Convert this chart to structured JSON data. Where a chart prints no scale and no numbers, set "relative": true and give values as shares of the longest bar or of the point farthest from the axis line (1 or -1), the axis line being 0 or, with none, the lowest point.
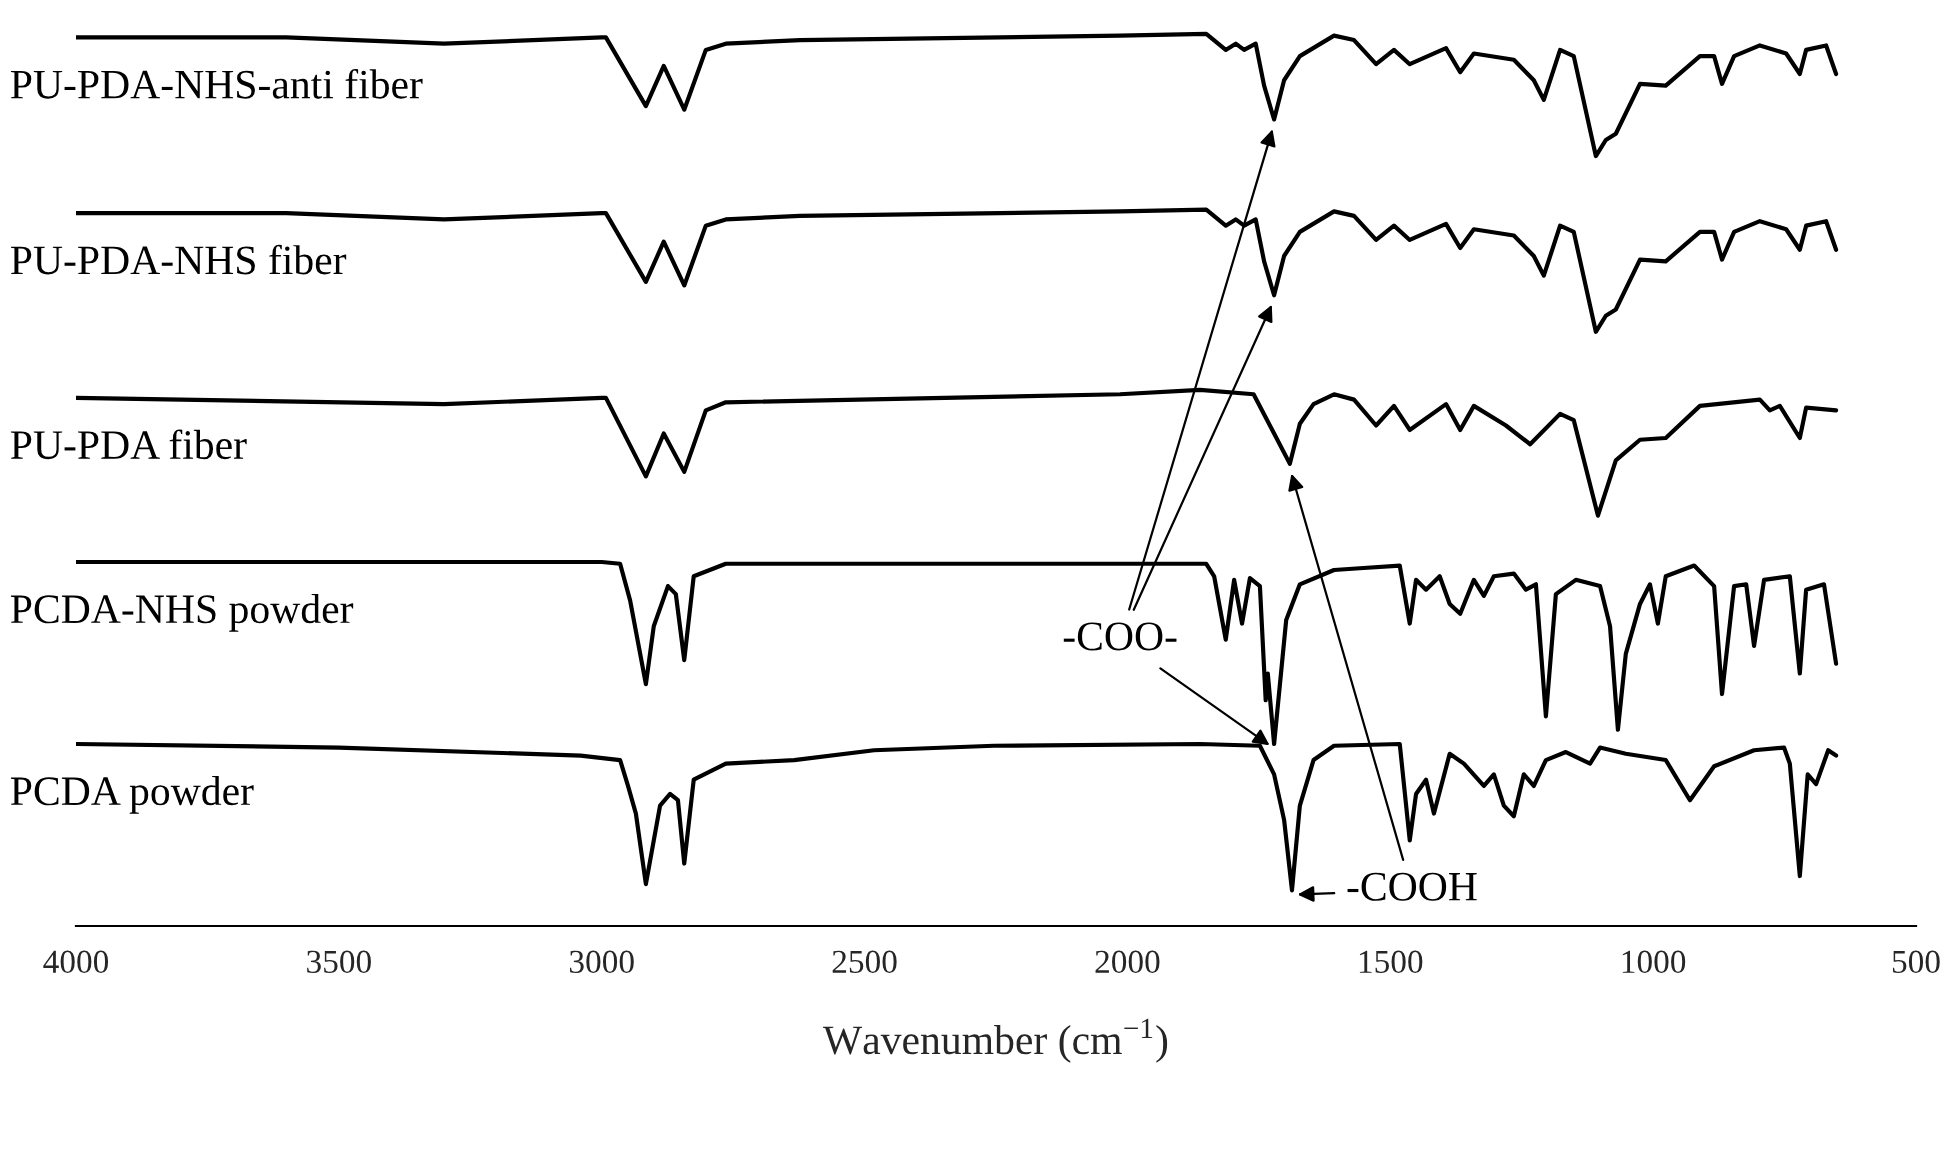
{
  "chart_data": {
    "type": "line",
    "relative": true,
    "xlabel": "Wavenumber (cm$^{−1}$)",
    "xlim": [
      4000,
      500
    ],
    "xticks": [
      4000,
      3500,
      3000,
      2500,
      2000,
      1500,
      1000,
      500
    ],
    "grid": false,
    "legend": false,
    "tick_labels": "x",
    "series": [
      {
        "name": "PU-PDA-NHS-anti fiber",
        "color": "#000000",
        "x": [
          4000,
          3600,
          3300,
          3000,
          2992,
          2916,
          2882,
          2843,
          2802,
          2764,
          2623,
          2014,
          1850,
          1813,
          1794,
          1778,
          1756,
          1740,
          1721,
          1702,
          1672,
          1607,
          1569,
          1527,
          1493,
          1463,
          1394,
          1367,
          1341,
          1265,
          1227,
          1208,
          1177,
          1151,
          1109,
          1090,
          1071,
          1025,
          976,
          911,
          884,
          869,
          846,
          797,
          747,
          721,
          709,
          671,
          652
        ],
        "values": [
          0.996,
          0.996,
          0.989,
          0.996,
          0.996,
          0.919,
          0.964,
          0.915,
          0.982,
          0.989,
          0.993,
          0.998,
          1.0,
          0.982,
          0.989,
          0.982,
          0.989,
          0.942,
          0.904,
          0.948,
          0.975,
          0.998,
          0.993,
          0.966,
          0.982,
          0.966,
          0.984,
          0.957,
          0.978,
          0.971,
          0.948,
          0.926,
          0.982,
          0.975,
          0.863,
          0.881,
          0.888,
          0.944,
          0.942,
          0.975,
          0.975,
          0.944,
          0.975,
          0.987,
          0.978,
          0.955,
          0.982,
          0.987,
          0.955
        ]
      },
      {
        "name": "PU-PDA-NHS fiber",
        "color": "#000000",
        "x": [
          4000,
          3600,
          3300,
          3000,
          2992,
          2916,
          2882,
          2843,
          2802,
          2764,
          2623,
          2014,
          1850,
          1813,
          1794,
          1778,
          1756,
          1740,
          1721,
          1702,
          1672,
          1607,
          1569,
          1527,
          1493,
          1463,
          1394,
          1367,
          1341,
          1265,
          1227,
          1208,
          1177,
          1151,
          1109,
          1090,
          1071,
          1025,
          976,
          911,
          884,
          869,
          846,
          797,
          747,
          721,
          709,
          671,
          652
        ],
        "values": [
          0.799,
          0.799,
          0.792,
          0.799,
          0.799,
          0.722,
          0.767,
          0.718,
          0.785,
          0.792,
          0.796,
          0.801,
          0.803,
          0.785,
          0.792,
          0.785,
          0.792,
          0.745,
          0.707,
          0.751,
          0.778,
          0.801,
          0.796,
          0.769,
          0.785,
          0.769,
          0.787,
          0.76,
          0.781,
          0.774,
          0.751,
          0.729,
          0.785,
          0.778,
          0.666,
          0.684,
          0.691,
          0.747,
          0.745,
          0.778,
          0.778,
          0.747,
          0.778,
          0.79,
          0.781,
          0.758,
          0.785,
          0.79,
          0.758
        ]
      },
      {
        "name": "PU-PDA fiber",
        "color": "#000000",
        "x": [
          4000,
          3300,
          3000,
          2992,
          2916,
          2882,
          2843,
          2802,
          2764,
          2014,
          1862,
          1760,
          1721,
          1691,
          1672,
          1646,
          1607,
          1569,
          1527,
          1493,
          1463,
          1394,
          1367,
          1341,
          1280,
          1234,
          1177,
          1151,
          1105,
          1071,
          1025,
          976,
          911,
          797,
          778,
          759,
          721,
          709,
          652
        ],
        "values": [
          0.592,
          0.585,
          0.592,
          0.592,
          0.504,
          0.552,
          0.509,
          0.578,
          0.587,
          0.596,
          0.601,
          0.596,
          0.552,
          0.518,
          0.563,
          0.585,
          0.596,
          0.59,
          0.561,
          0.583,
          0.556,
          0.585,
          0.556,
          0.583,
          0.561,
          0.54,
          0.574,
          0.567,
          0.46,
          0.522,
          0.545,
          0.547,
          0.583,
          0.59,
          0.578,
          0.583,
          0.547,
          0.581,
          0.578
        ]
      },
      {
        "name": "PCDA-NHS powder",
        "color": "#000000",
        "x": [
          4000,
          3000,
          2965,
          2946,
          2916,
          2901,
          2874,
          2859,
          2843,
          2825,
          2764,
          1850,
          1835,
          1813,
          1797,
          1782,
          1767,
          1748,
          1737,
          1733,
          1721,
          1698,
          1672,
          1607,
          1558,
          1482,
          1463,
          1451,
          1432,
          1406,
          1387,
          1367,
          1341,
          1322,
          1303,
          1265,
          1242,
          1223,
          1204,
          1185,
          1147,
          1101,
          1082,
          1067,
          1052,
          1025,
          1006,
          991,
          976,
          922,
          884,
          869,
          846,
          823,
          808,
          789,
          740,
          721,
          709,
          675,
          652
        ],
        "values": [
          0.408,
          0.408,
          0.406,
          0.365,
          0.271,
          0.336,
          0.381,
          0.372,
          0.298,
          0.392,
          0.406,
          0.406,
          0.392,
          0.321,
          0.388,
          0.339,
          0.39,
          0.381,
          0.253,
          0.283,
          0.204,
          0.343,
          0.383,
          0.399,
          0.401,
          0.404,
          0.339,
          0.388,
          0.377,
          0.392,
          0.361,
          0.35,
          0.388,
          0.37,
          0.392,
          0.395,
          0.377,
          0.383,
          0.235,
          0.372,
          0.388,
          0.381,
          0.336,
          0.22,
          0.305,
          0.361,
          0.383,
          0.339,
          0.392,
          0.404,
          0.381,
          0.26,
          0.381,
          0.383,
          0.314,
          0.388,
          0.392,
          0.283,
          0.377,
          0.383,
          0.294
        ]
      },
      {
        "name": "PCDA powder",
        "color": "#000000",
        "x": [
          4000,
          3500,
          3040,
          2965,
          2950,
          2935,
          2916,
          2889,
          2870,
          2855,
          2843,
          2825,
          2764,
          2634,
          2482,
          2254,
          1862,
          1748,
          1721,
          1702,
          1687,
          1672,
          1646,
          1607,
          1482,
          1463,
          1451,
          1432,
          1417,
          1387,
          1360,
          1322,
          1303,
          1284,
          1265,
          1246,
          1227,
          1204,
          1166,
          1120,
          1101,
          1052,
          976,
          930,
          884,
          808,
          751,
          740,
          721,
          706,
          690,
          667,
          652
        ],
        "values": [
          0.204,
          0.2,
          0.191,
          0.186,
          0.157,
          0.126,
          0.047,
          0.135,
          0.148,
          0.141,
          0.07,
          0.164,
          0.182,
          0.186,
          0.197,
          0.202,
          0.204,
          0.202,
          0.17,
          0.119,
          0.04,
          0.135,
          0.186,
          0.202,
          0.204,
          0.096,
          0.148,
          0.164,
          0.126,
          0.193,
          0.182,
          0.157,
          0.17,
          0.135,
          0.123,
          0.17,
          0.157,
          0.186,
          0.195,
          0.182,
          0.2,
          0.193,
          0.186,
          0.141,
          0.179,
          0.197,
          0.2,
          0.182,
          0.056,
          0.17,
          0.159,
          0.197,
          0.191
        ]
      }
    ],
    "annotations": [
      {
        "text": "-COO-",
        "x": 1721,
        "y": 0.204
      },
      {
        "text": "-COOH",
        "x": 1687,
        "y": 0.04
      }
    ]
  }
}
